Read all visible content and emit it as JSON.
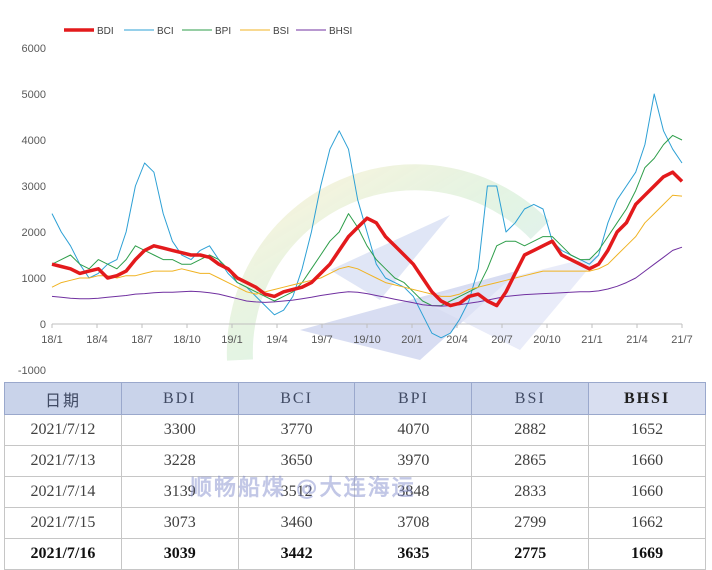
{
  "chart_data": {
    "type": "line",
    "ylim": [
      -1000,
      6000
    ],
    "y_ticks": [
      "6000",
      "5000",
      "4000",
      "3000",
      "2000",
      "1000",
      "0",
      "-1000"
    ],
    "x_ticks": [
      "18/1",
      "18/4",
      "18/7",
      "18/10",
      "19/1",
      "19/4",
      "19/7",
      "19/10",
      "20/1",
      "20/4",
      "20/7",
      "20/10",
      "21/1",
      "21/4",
      "21/7"
    ],
    "legend_position": "top-left",
    "grid": false,
    "series": [
      {
        "name": "BDI",
        "color": "#e31a1c",
        "width": 3.5,
        "values": [
          1300,
          1250,
          1200,
          1100,
          1150,
          1200,
          1000,
          1050,
          1150,
          1400,
          1600,
          1700,
          1650,
          1600,
          1550,
          1500,
          1500,
          1450,
          1300,
          1200,
          1000,
          900,
          800,
          650,
          600,
          700,
          750,
          800,
          900,
          1100,
          1300,
          1600,
          1900,
          2100,
          2300,
          2200,
          1900,
          1700,
          1500,
          1300,
          1000,
          700,
          500,
          400,
          450,
          600,
          650,
          500,
          400,
          700,
          1100,
          1500,
          1600,
          1700,
          1800,
          1500,
          1400,
          1300,
          1200,
          1300,
          1600,
          2000,
          2200,
          2600,
          2800,
          3000,
          3200,
          3300,
          3100
        ]
      },
      {
        "name": "BCI",
        "color": "#2da0d5",
        "width": 1,
        "values": [
          2400,
          2000,
          1700,
          1300,
          1000,
          1100,
          1300,
          1400,
          2000,
          3000,
          3500,
          3300,
          2400,
          1800,
          1500,
          1400,
          1600,
          1700,
          1400,
          1100,
          900,
          800,
          600,
          400,
          200,
          300,
          600,
          1200,
          2000,
          3000,
          3800,
          4200,
          3800,
          2700,
          2000,
          1300,
          1000,
          900,
          800,
          600,
          200,
          -200,
          -300,
          -200,
          100,
          500,
          1200,
          3000,
          3000,
          2000,
          2200,
          2500,
          2600,
          2500,
          1800,
          1600,
          1500,
          1400,
          1300,
          1500,
          2200,
          2700,
          3000,
          3300,
          3900,
          5000,
          4200,
          3800,
          3500
        ]
      },
      {
        "name": "BPI",
        "color": "#2e9e4a",
        "width": 1,
        "values": [
          1300,
          1400,
          1500,
          1300,
          1200,
          1400,
          1300,
          1200,
          1400,
          1700,
          1600,
          1500,
          1400,
          1400,
          1300,
          1300,
          1400,
          1500,
          1400,
          1200,
          900,
          800,
          700,
          600,
          500,
          600,
          700,
          900,
          1200,
          1500,
          1800,
          2000,
          2400,
          2100,
          1700,
          1400,
          1200,
          1000,
          900,
          700,
          500,
          400,
          400,
          500,
          600,
          700,
          800,
          1200,
          1700,
          1800,
          1800,
          1700,
          1800,
          1900,
          1900,
          1700,
          1500,
          1400,
          1400,
          1600,
          1900,
          2200,
          2500,
          2900,
          3400,
          3600,
          3900,
          4100,
          4000
        ]
      },
      {
        "name": "BSI",
        "color": "#f0b323",
        "width": 1,
        "values": [
          800,
          900,
          950,
          1000,
          1000,
          1050,
          1050,
          1000,
          1050,
          1050,
          1100,
          1150,
          1150,
          1150,
          1200,
          1150,
          1100,
          1100,
          1000,
          900,
          800,
          700,
          650,
          700,
          750,
          800,
          850,
          900,
          950,
          1000,
          1100,
          1200,
          1250,
          1200,
          1100,
          1000,
          900,
          850,
          800,
          750,
          700,
          650,
          600,
          600,
          650,
          750,
          800,
          850,
          900,
          950,
          1000,
          1050,
          1100,
          1150,
          1150,
          1150,
          1150,
          1150,
          1150,
          1200,
          1300,
          1500,
          1700,
          1900,
          2200,
          2400,
          2600,
          2800,
          2780
        ]
      },
      {
        "name": "BHSI",
        "color": "#7030a0",
        "width": 1,
        "values": [
          600,
          580,
          560,
          550,
          550,
          560,
          580,
          600,
          620,
          650,
          660,
          680,
          690,
          690,
          700,
          710,
          700,
          680,
          650,
          600,
          550,
          500,
          480,
          470,
          480,
          500,
          520,
          550,
          580,
          620,
          650,
          680,
          700,
          690,
          660,
          620,
          580,
          540,
          500,
          460,
          420,
          400,
          390,
          400,
          420,
          450,
          480,
          520,
          560,
          600,
          620,
          640,
          650,
          660,
          670,
          680,
          690,
          700,
          700,
          720,
          760,
          820,
          900,
          1000,
          1150,
          1300,
          1450,
          1600,
          1669
        ]
      }
    ]
  },
  "table": {
    "headers": [
      "日期",
      "BDI",
      "BCI",
      "BPI",
      "BSI",
      "BHSI"
    ],
    "rows": [
      [
        "2021/7/12",
        "3300",
        "3770",
        "4070",
        "2882",
        "1652"
      ],
      [
        "2021/7/13",
        "3228",
        "3650",
        "3970",
        "2865",
        "1660"
      ],
      [
        "2021/7/14",
        "3139",
        "3512",
        "3848",
        "2833",
        "1660"
      ],
      [
        "2021/7/15",
        "3073",
        "3460",
        "3708",
        "2799",
        "1662"
      ],
      [
        "2021/7/16",
        "3039",
        "3442",
        "3635",
        "2775",
        "1669"
      ]
    ]
  },
  "watermark": {
    "text": "顺畅船煤 @大连海运"
  }
}
